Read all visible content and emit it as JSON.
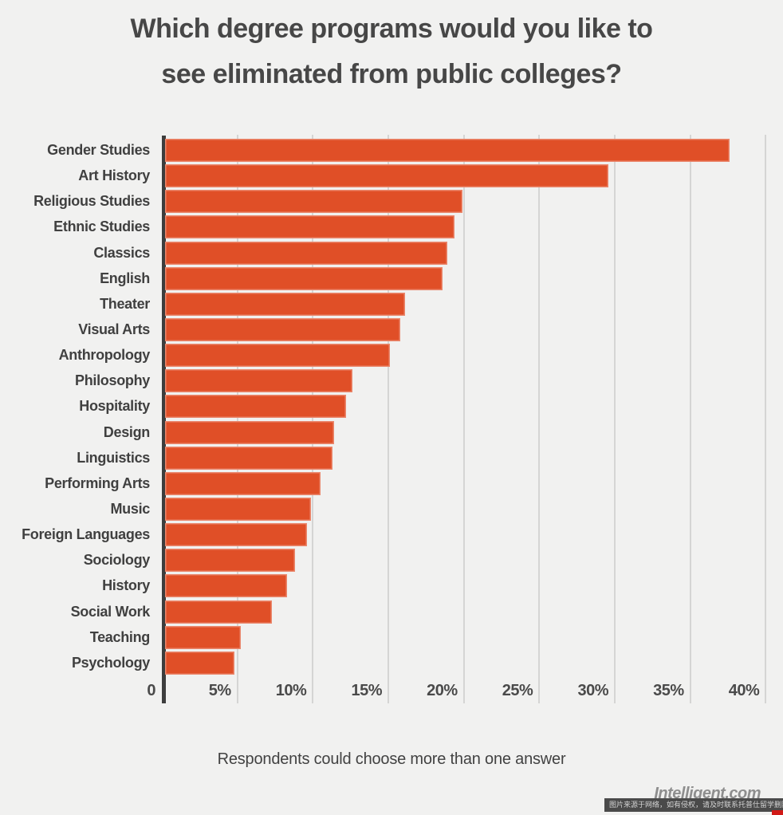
{
  "title": {
    "line1": "Which degree programs would you like to",
    "line2": "see eliminated from public colleges?"
  },
  "chart_data": {
    "type": "bar",
    "orientation": "horizontal",
    "title": "Which degree programs would you like to see eliminated from public colleges?",
    "categories": [
      "Gender Studies",
      "Art History",
      "Religious Studies",
      "Ethnic Studies",
      "Classics",
      "English",
      "Theater",
      "Visual Arts",
      "Anthropology",
      "Philosophy",
      "Hospitality",
      "Design",
      "Linguistics",
      "Performing Arts",
      "Music",
      "Foreign Languages",
      "Sociology",
      "History",
      "Social Work",
      "Teaching",
      "Psychology"
    ],
    "values": [
      37.6,
      29.6,
      19.9,
      19.4,
      18.9,
      18.6,
      16.1,
      15.8,
      15.1,
      12.6,
      12.2,
      11.4,
      11.3,
      10.5,
      9.9,
      9.6,
      8.8,
      8.3,
      7.3,
      5.2,
      4.8
    ],
    "value_unit": "%",
    "x_ticks": [
      {
        "value": 0,
        "label": "0"
      },
      {
        "value": 5,
        "label": "5%"
      },
      {
        "value": 10,
        "label": "10%"
      },
      {
        "value": 15,
        "label": "15%"
      },
      {
        "value": 20,
        "label": "20%"
      },
      {
        "value": 25,
        "label": "25%"
      },
      {
        "value": 30,
        "label": "30%"
      },
      {
        "value": 35,
        "label": "35%"
      },
      {
        "value": 40,
        "label": "40%"
      }
    ],
    "xlim": [
      0,
      41
    ],
    "grid": "vertical-gridlines-on",
    "legend": "none",
    "caption": "Respondents could choose more than one answer"
  },
  "caption": "Respondents could choose more than one answer",
  "attribution": "Intelligent.com",
  "watermark": {
    "text": "图片来源于网络，如有侵权，请及时联系托普仕留学删除"
  },
  "colors": {
    "background": "#f1f1f0",
    "bar": "#e04f27",
    "axis": "#3d3d3d",
    "gridline": "#d5d5d4",
    "title_text": "#474747",
    "label_text": "#404040",
    "tick_text": "#4a4a4a",
    "caption_text": "#424242",
    "attribution_text": "#8e8e8e",
    "watermark_bg": "#4a4a4a",
    "watermark_text": "#d4d4d4",
    "corner_mark": "#d11a17"
  }
}
